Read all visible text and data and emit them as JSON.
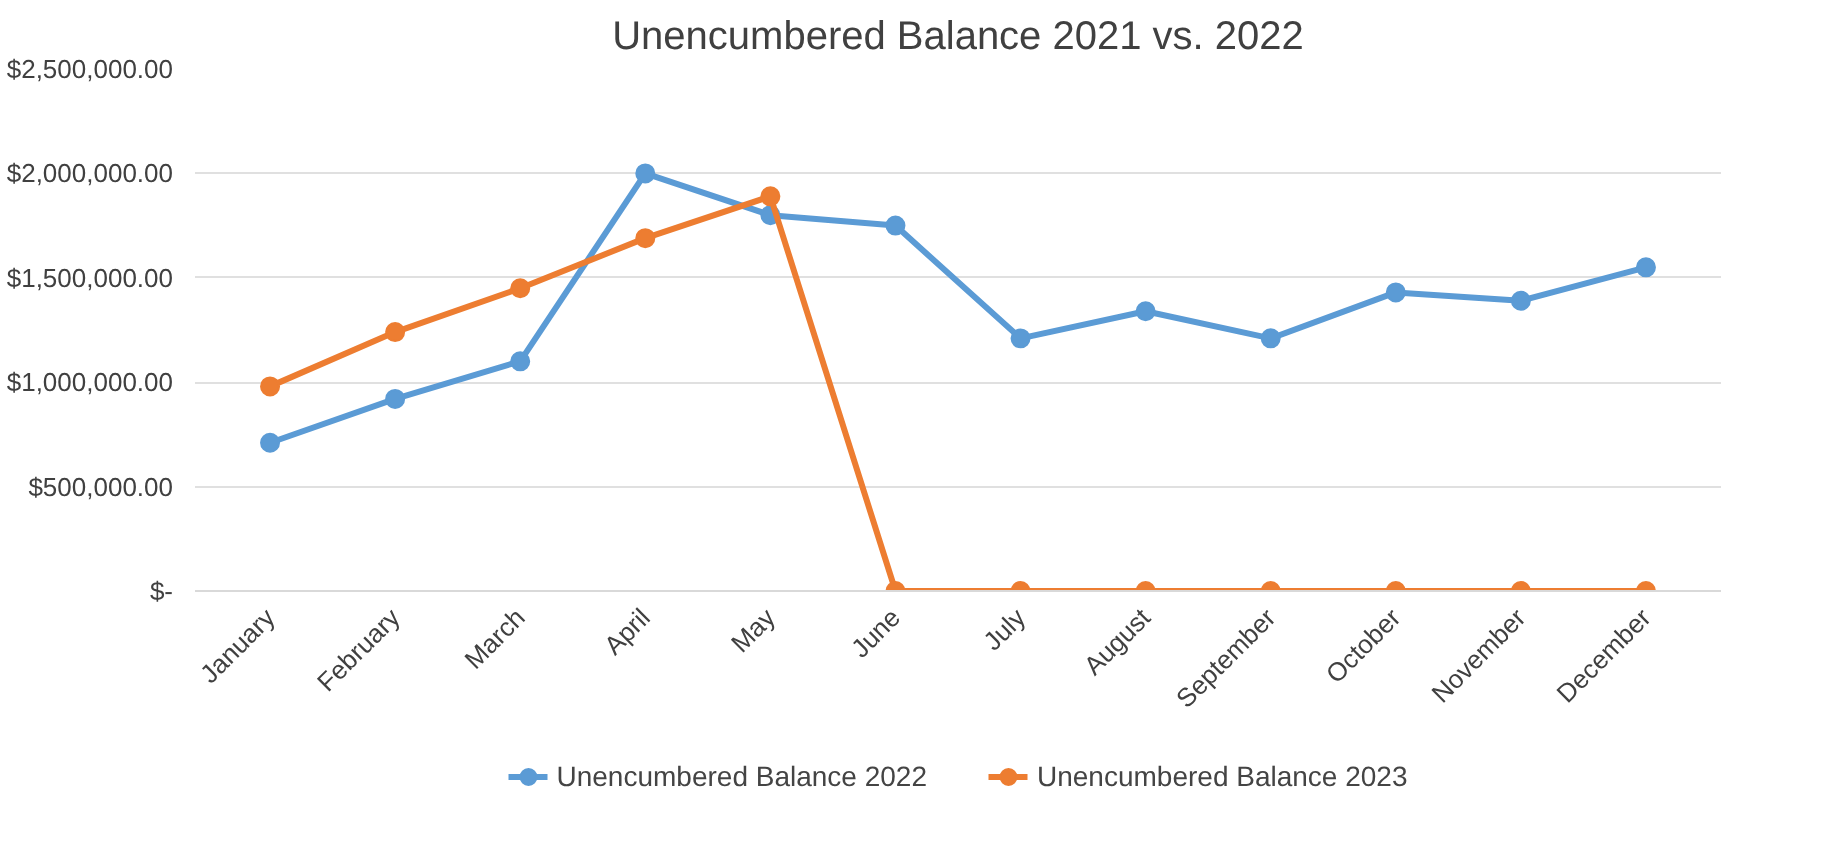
{
  "chart_data": {
    "type": "line",
    "title": "Unencumbered Balance 2021 vs. 2022",
    "categories": [
      "January",
      "February",
      "March",
      "April",
      "May",
      "June",
      "July",
      "August",
      "September",
      "October",
      "November",
      "December"
    ],
    "series": [
      {
        "name": "Unencumbered Balance 2022",
        "color": "#5b9bd5",
        "values": [
          710000,
          920000,
          1100000,
          2000000,
          1800000,
          1750000,
          1210000,
          1340000,
          1210000,
          1430000,
          1390000,
          1550000
        ]
      },
      {
        "name": "Unencumbered Balance 2023",
        "color": "#ed7d31",
        "values": [
          980000,
          1240000,
          1450000,
          1690000,
          1890000,
          0,
          0,
          0,
          0,
          0,
          0,
          0
        ]
      }
    ],
    "ylim": [
      0,
      2500000
    ],
    "yticks": [
      {
        "value": 0,
        "label": "$-"
      },
      {
        "value": 500000,
        "label": "$500,000.00"
      },
      {
        "value": 1000000,
        "label": "$1,000,000.00"
      },
      {
        "value": 1500000,
        "label": "$1,500,000.00"
      },
      {
        "value": 2000000,
        "label": "$2,000,000.00"
      },
      {
        "value": 2500000,
        "label": "$2,500,000.00"
      }
    ],
    "grid": "y",
    "legend": "bottom",
    "marker": "circle",
    "line_style": "solid"
  }
}
